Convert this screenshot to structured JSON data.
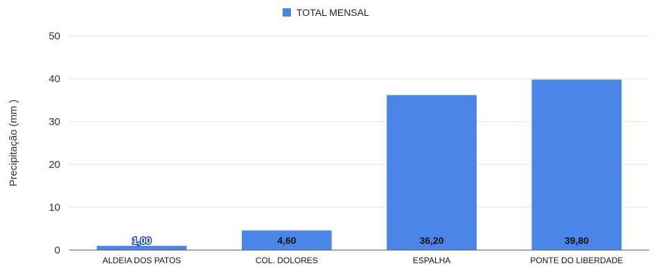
{
  "chart_data": {
    "type": "bar",
    "categories": [
      "ALDEIA DOS PATOS",
      "COL. DOLORES",
      "ESPALHA",
      "PONTE DO LIBERDADE"
    ],
    "series": [
      {
        "name": "TOTAL MENSAL",
        "values": [
          1.0,
          4.6,
          36.2,
          39.8
        ]
      }
    ],
    "data_labels": [
      "1,00",
      "4,60",
      "36,20",
      "39,80"
    ],
    "title": "",
    "xlabel": "",
    "ylabel": "Precipitação (mm )",
    "ylim": [
      0,
      50
    ],
    "yticks": [
      0,
      10,
      20,
      30,
      40,
      50
    ],
    "grid": true,
    "legend_position": "top",
    "colors": {
      "bar": "#4a86e8",
      "grid": "#e0e0e0",
      "axis": "#555555"
    }
  }
}
